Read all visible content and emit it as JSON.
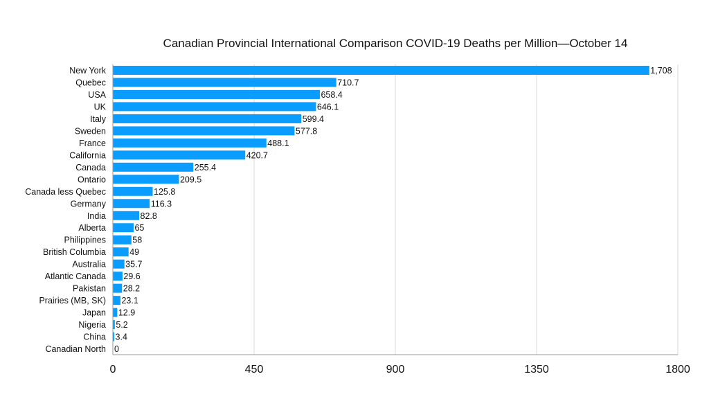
{
  "chart_data": {
    "type": "bar",
    "orientation": "horizontal",
    "title": "Canadian Provincial International Comparison COVID-19 Deaths per Million—October 14",
    "xlabel": "",
    "ylabel": "",
    "xlim": [
      0,
      1800
    ],
    "x_ticks": [
      "0",
      "450",
      "900",
      "1350",
      "1800"
    ],
    "x_tick_values": [
      0,
      450,
      900,
      1350,
      1800
    ],
    "grid": true,
    "bar_color": "#0a9dff",
    "categories": [
      "New York",
      "Quebec",
      "USA",
      "UK",
      "Italy",
      "Sweden",
      "France",
      "California",
      "Canada",
      "Ontario",
      "Canada less Quebec",
      "Germany",
      "India",
      "Alberta",
      "Philippines",
      "British Columbia",
      "Australia",
      "Atlantic Canada",
      "Pakistan",
      "Prairies (MB, SK)",
      "Japan",
      "Nigeria",
      "China",
      "Canadian North"
    ],
    "values": [
      1708,
      710.7,
      658.4,
      646.1,
      599.4,
      577.8,
      488.1,
      420.7,
      255.4,
      209.5,
      125.8,
      116.3,
      82.8,
      65,
      58,
      49,
      35.7,
      29.6,
      28.2,
      23.1,
      12.9,
      5.2,
      3.4,
      0
    ],
    "data_labels": [
      "1,708",
      "710.7",
      "658.4",
      "646.1",
      "599.4",
      "577.8",
      "488.1",
      "420.7",
      "255.4",
      "209.5",
      "125.8",
      "116.3",
      "82.8",
      "65",
      "58",
      "49",
      "35.7",
      "29.6",
      "28.2",
      "23.1",
      "12.9",
      "5.2",
      "3.4",
      "0"
    ]
  }
}
